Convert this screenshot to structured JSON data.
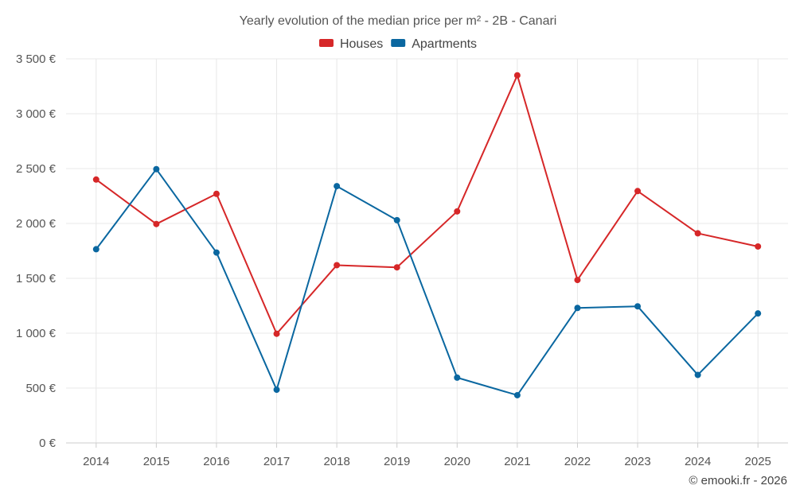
{
  "chart_data": {
    "type": "line",
    "title": "Yearly evolution of the median price per m² - 2B - Canari",
    "categories": [
      "2014",
      "2015",
      "2016",
      "2017",
      "2018",
      "2019",
      "2020",
      "2021",
      "2022",
      "2023",
      "2024",
      "2025"
    ],
    "series": [
      {
        "name": "Houses",
        "color": "#d62728",
        "values": [
          2400,
          1995,
          2270,
          995,
          1620,
          1600,
          2110,
          3350,
          1485,
          2295,
          1910,
          1790
        ]
      },
      {
        "name": "Apartments",
        "color": "#0a67a0",
        "values": [
          1765,
          2495,
          1735,
          485,
          2340,
          2030,
          595,
          435,
          1230,
          1245,
          620,
          1180
        ]
      }
    ],
    "ylim": [
      0,
      3500
    ],
    "yticks": [
      0,
      500,
      1000,
      1500,
      2000,
      2500,
      3000,
      3500
    ],
    "ytick_labels": [
      "0 €",
      "500 €",
      "1 000 €",
      "1 500 €",
      "2 000 €",
      "2 500 €",
      "3 000 €",
      "3 500 €"
    ],
    "xlabel": "",
    "ylabel": "",
    "legend_position": "top-center",
    "grid": true
  },
  "credit": "© emooki.fr - 2026"
}
